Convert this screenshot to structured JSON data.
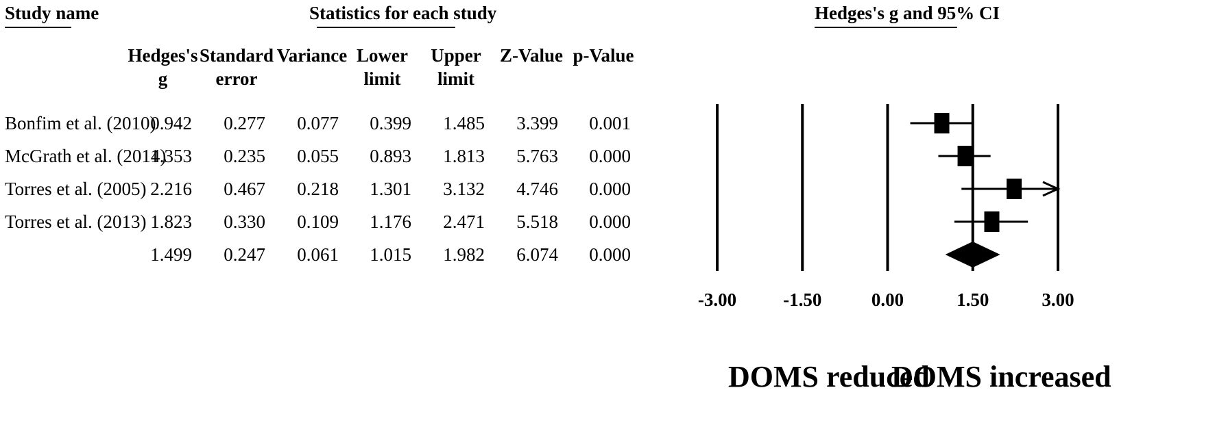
{
  "headers": {
    "study_name": "Study name",
    "statistics": "Statistics for each study",
    "plot": "Hedges's g and 95% CI"
  },
  "columns": [
    {
      "key": "g",
      "line1": "Hedges's",
      "line2": "g"
    },
    {
      "key": "se",
      "line1": "Standard",
      "line2": "error"
    },
    {
      "key": "var",
      "line1": "",
      "line2": "Variance"
    },
    {
      "key": "ll",
      "line1": "Lower",
      "line2": "limit"
    },
    {
      "key": "ul",
      "line1": "Upper",
      "line2": "limit"
    },
    {
      "key": "z",
      "line1": "",
      "line2": "Z-Value"
    },
    {
      "key": "p",
      "line1": "",
      "line2": "p-Value"
    }
  ],
  "rows": [
    {
      "name": "Bonfim et al. (2010)",
      "g": "0.942",
      "se": "0.277",
      "var": "0.077",
      "ll": "0.399",
      "ul": "1.485",
      "z": "3.399",
      "p": "0.001"
    },
    {
      "name": "McGrath et al. (2014)",
      "g": "1.353",
      "se": "0.235",
      "var": "0.055",
      "ll": "0.893",
      "ul": "1.813",
      "z": "5.763",
      "p": "0.000"
    },
    {
      "name": "Torres et al. (2005)",
      "g": "2.216",
      "se": "0.467",
      "var": "0.218",
      "ll": "1.301",
      "ul": "3.132",
      "z": "4.746",
      "p": "0.000"
    },
    {
      "name": "Torres et al. (2013)",
      "g": "1.823",
      "se": "0.330",
      "var": "0.109",
      "ll": "1.176",
      "ul": "2.471",
      "z": "5.518",
      "p": "0.000"
    },
    {
      "name": "",
      "g": "1.499",
      "se": "0.247",
      "var": "0.061",
      "ll": "1.015",
      "ul": "1.982",
      "z": "6.074",
      "p": "0.000"
    }
  ],
  "chart_data": {
    "type": "forest",
    "xlim": [
      -3.0,
      3.0
    ],
    "ticks": [
      -3.0,
      -1.5,
      0.0,
      1.5,
      3.0
    ],
    "tick_labels": [
      "-3.00",
      "-1.50",
      "0.00",
      "1.50",
      "3.00"
    ],
    "studies": [
      {
        "g": 0.942,
        "ll": 0.399,
        "ul": 1.485
      },
      {
        "g": 1.353,
        "ll": 0.893,
        "ul": 1.813
      },
      {
        "g": 2.216,
        "ll": 1.301,
        "ul": 3.132
      },
      {
        "g": 1.823,
        "ll": 1.176,
        "ul": 2.471
      }
    ],
    "summary": {
      "g": 1.499,
      "ll": 1.015,
      "ul": 1.982
    },
    "direction_labels": {
      "left": "DOMS reduced",
      "right": "DOMS increased"
    }
  }
}
